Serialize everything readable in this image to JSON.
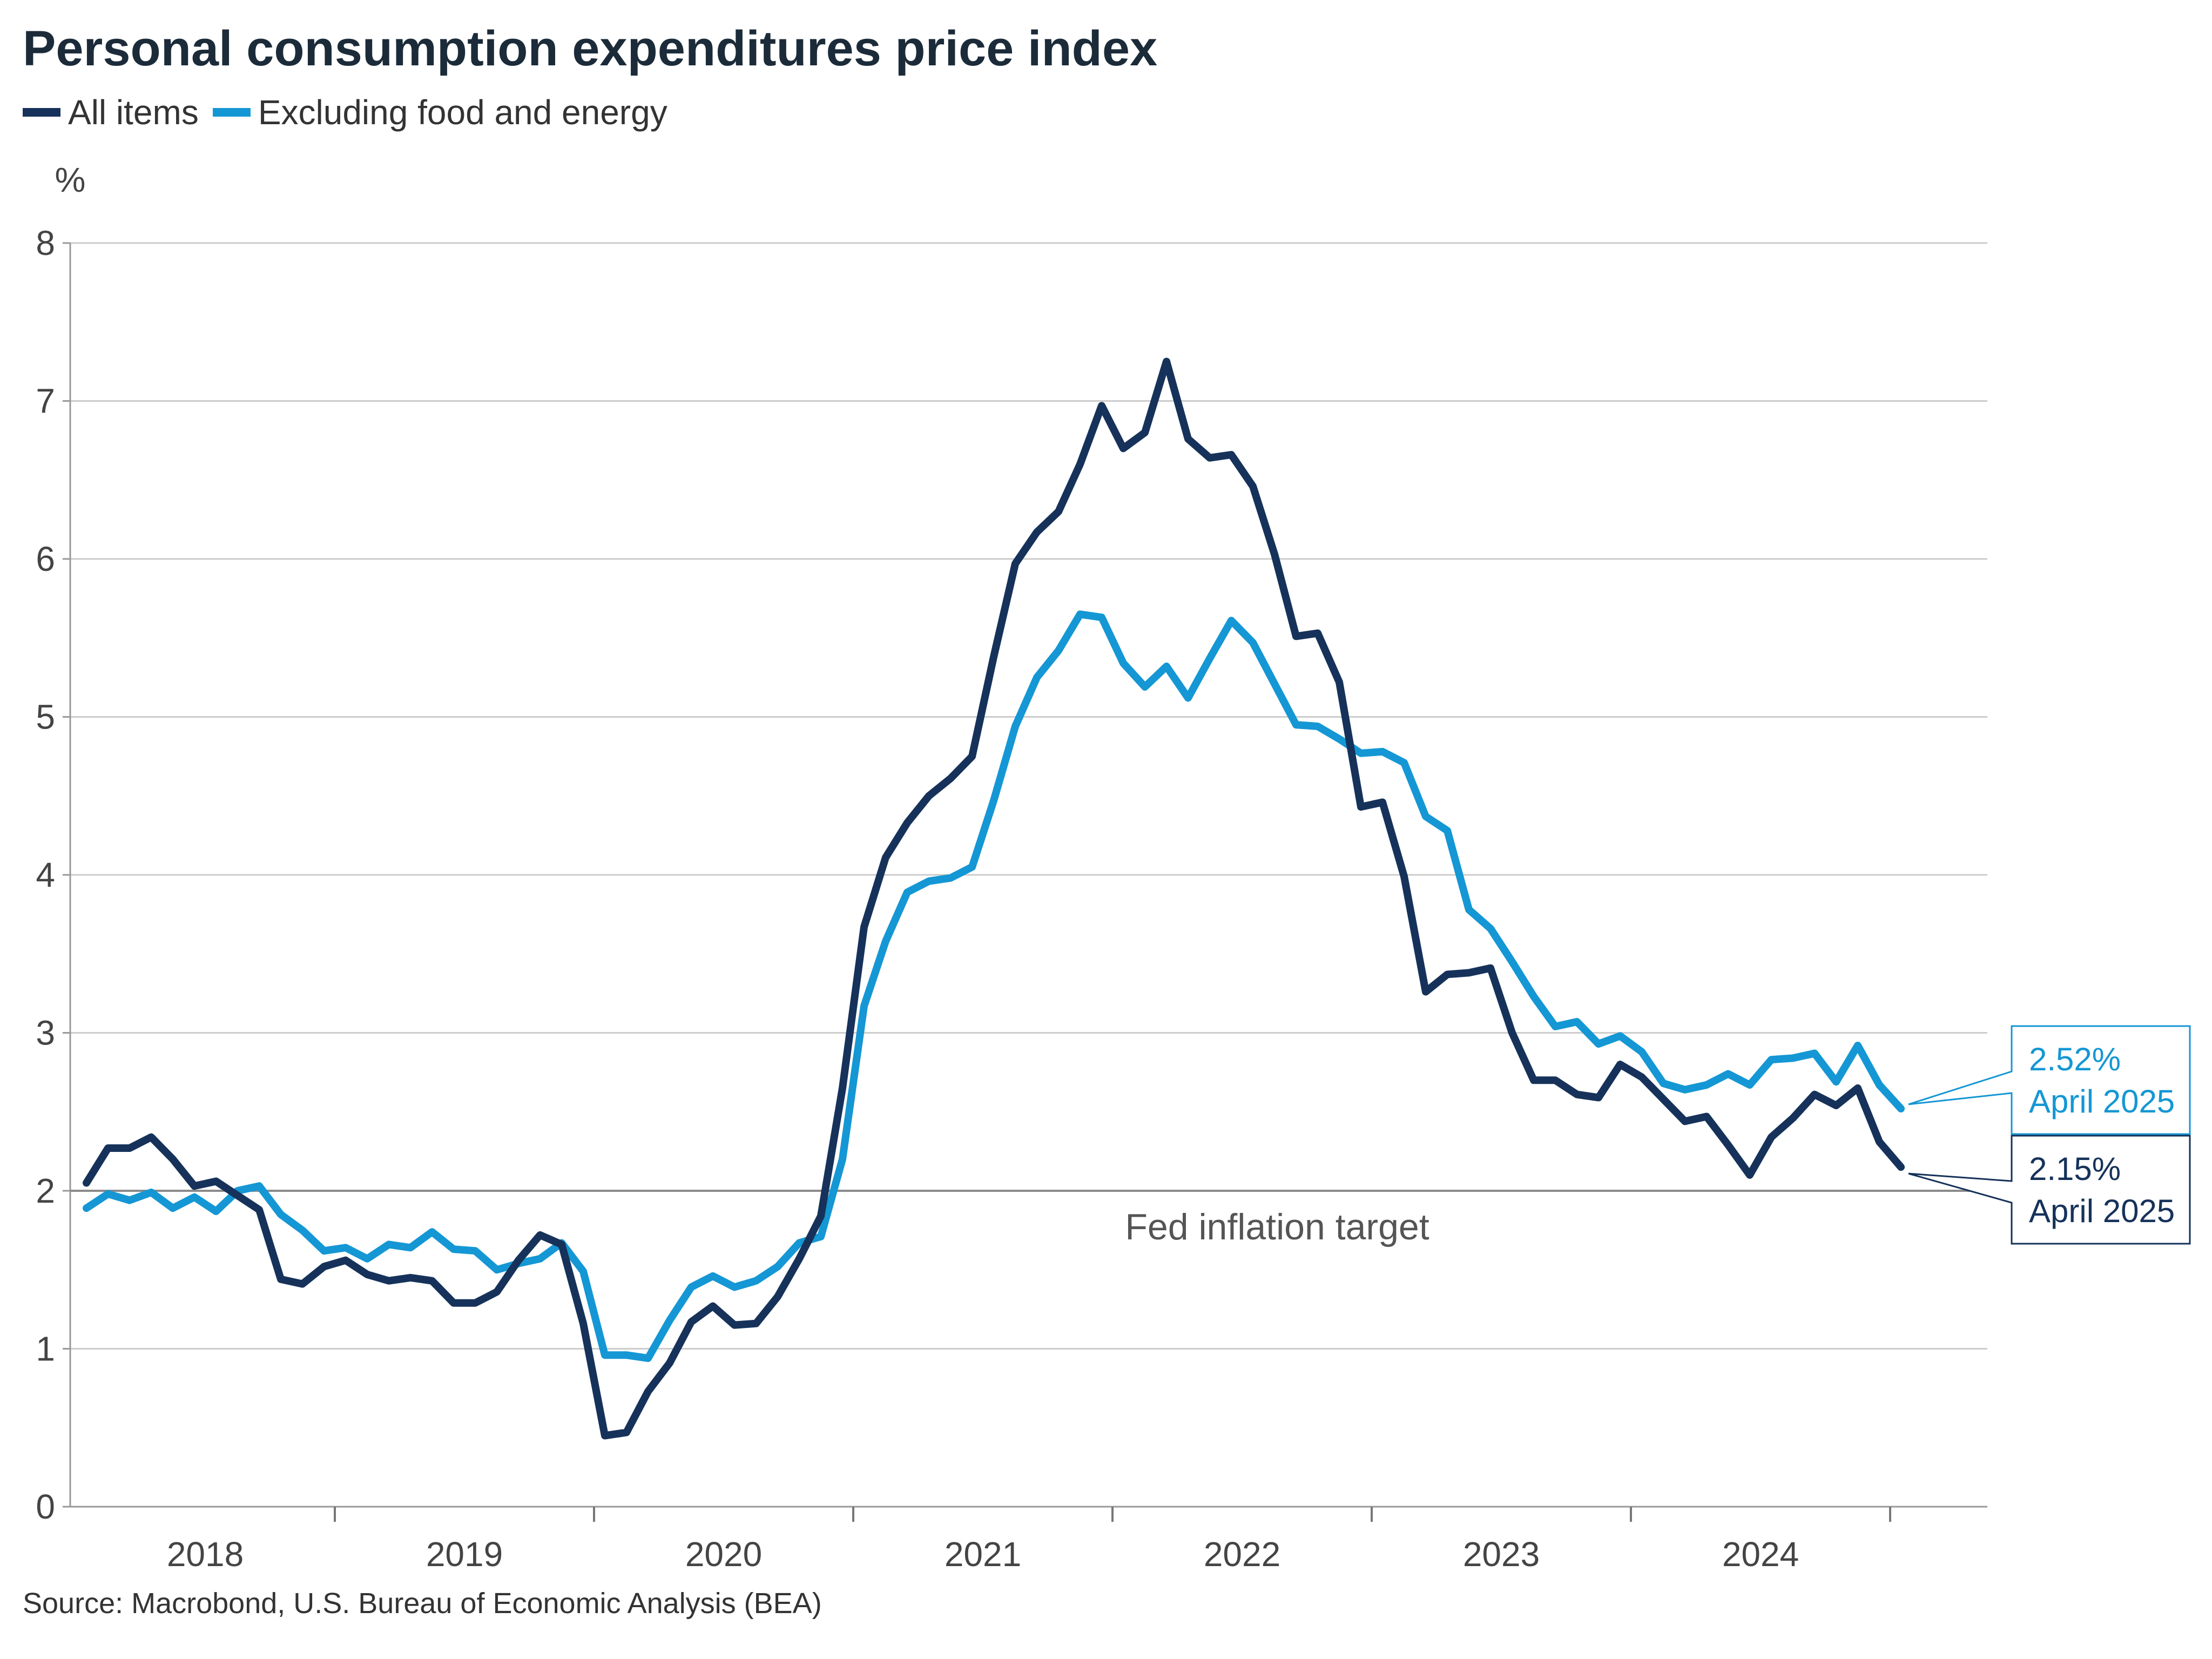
{
  "title": "Personal consumption expenditures price index",
  "source": "Source: Macrobond, U.S. Bureau of Economic Analysis (BEA)",
  "colors": {
    "all_items": "#16325a",
    "core": "#1497d4",
    "grid": "#cccccc",
    "reference": "#8a8a8a",
    "text": "#1c2b39"
  },
  "legend": [
    {
      "name": "All items",
      "color": "#16325a"
    },
    {
      "name": "Excluding food and energy",
      "color": "#1497d4"
    }
  ],
  "callouts": {
    "core": {
      "value": "2.52%",
      "date": "April 2025"
    },
    "all_items": {
      "value": "2.15%",
      "date": "April 2025"
    }
  },
  "chart_data": {
    "type": "line",
    "title": "Personal consumption expenditures price index",
    "ylabel": "%",
    "xlabel": "",
    "ylim": [
      0,
      8
    ],
    "yticks": [
      0,
      1,
      2,
      3,
      4,
      5,
      6,
      7,
      8
    ],
    "xticks": [
      "2018",
      "2019",
      "2020",
      "2021",
      "2022",
      "2023",
      "2024"
    ],
    "x_start": "2018-01",
    "x_end": "2025-04",
    "grid": true,
    "legend_position": "top-left",
    "reference_line": {
      "y": 2,
      "label": "Fed inflation target"
    },
    "series": [
      {
        "name": "All items",
        "color": "#16325a",
        "values": [
          2.05,
          2.27,
          2.27,
          2.34,
          2.2,
          2.03,
          2.06,
          1.97,
          1.88,
          1.44,
          1.41,
          1.52,
          1.56,
          1.47,
          1.43,
          1.45,
          1.43,
          1.29,
          1.29,
          1.36,
          1.56,
          1.72,
          1.66,
          1.16,
          0.45,
          0.47,
          0.73,
          0.91,
          1.17,
          1.27,
          1.15,
          1.16,
          1.33,
          1.57,
          1.84,
          2.65,
          3.67,
          4.11,
          4.33,
          4.5,
          4.61,
          4.75,
          5.38,
          5.97,
          6.17,
          6.3,
          6.6,
          6.97,
          6.7,
          6.8,
          7.25,
          6.76,
          6.64,
          6.66,
          6.46,
          6.03,
          5.51,
          5.53,
          5.22,
          4.43,
          4.46,
          3.99,
          3.26,
          3.37,
          3.38,
          3.41,
          3.0,
          2.7,
          2.7,
          2.61,
          2.59,
          2.8,
          2.72,
          2.58,
          2.44,
          2.47,
          2.29,
          2.1,
          2.34,
          2.46,
          2.61,
          2.54,
          2.65,
          2.31,
          2.15
        ]
      },
      {
        "name": "Excluding food and energy",
        "color": "#1497d4",
        "values": [
          1.89,
          1.98,
          1.94,
          1.99,
          1.89,
          1.96,
          1.87,
          2.0,
          2.03,
          1.85,
          1.75,
          1.62,
          1.64,
          1.57,
          1.66,
          1.64,
          1.74,
          1.63,
          1.62,
          1.5,
          1.54,
          1.57,
          1.67,
          1.49,
          0.96,
          0.96,
          0.94,
          1.18,
          1.39,
          1.46,
          1.39,
          1.43,
          1.52,
          1.67,
          1.71,
          2.2,
          3.17,
          3.58,
          3.89,
          3.96,
          3.98,
          4.05,
          4.47,
          4.94,
          5.25,
          5.42,
          5.65,
          5.63,
          5.34,
          5.19,
          5.32,
          5.12,
          5.37,
          5.61,
          5.47,
          5.21,
          4.95,
          4.94,
          4.86,
          4.77,
          4.78,
          4.71,
          4.37,
          4.28,
          3.78,
          3.66,
          3.45,
          3.23,
          3.04,
          3.07,
          2.93,
          2.98,
          2.88,
          2.68,
          2.64,
          2.67,
          2.74,
          2.67,
          2.83,
          2.84,
          2.87,
          2.69,
          2.92,
          2.67,
          2.52
        ]
      }
    ]
  }
}
